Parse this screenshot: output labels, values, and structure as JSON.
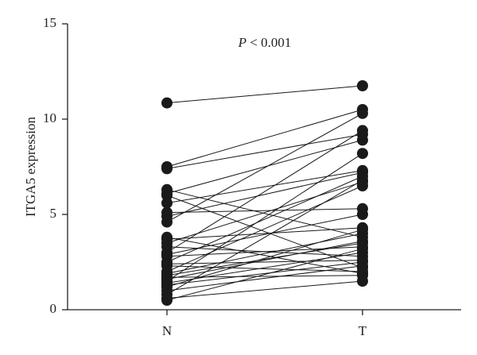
{
  "chart_data": {
    "type": "paired",
    "y_label": "ITGA5 expression",
    "annotation": {
      "italic": "P",
      "rest": " < 0.001"
    },
    "categories": [
      "N",
      "T"
    ],
    "pairs": [
      [
        10.85,
        11.75
      ],
      [
        7.5,
        10.5
      ],
      [
        7.4,
        9.2
      ],
      [
        6.3,
        3.8
      ],
      [
        6.1,
        8.9
      ],
      [
        5.6,
        7.3
      ],
      [
        5.1,
        5.3
      ],
      [
        4.6,
        10.3
      ],
      [
        3.7,
        4.3
      ],
      [
        3.5,
        6.7
      ],
      [
        3.3,
        2.8
      ],
      [
        3.0,
        9.4
      ],
      [
        2.9,
        5.0
      ],
      [
        2.8,
        3.3
      ],
      [
        2.5,
        7.0
      ],
      [
        2.3,
        2.0
      ],
      [
        2.0,
        6.5
      ],
      [
        1.9,
        4.0
      ],
      [
        1.8,
        3.5
      ],
      [
        1.7,
        1.8
      ],
      [
        1.5,
        8.2
      ],
      [
        1.4,
        3.0
      ],
      [
        1.3,
        2.5
      ],
      [
        1.2,
        4.2
      ],
      [
        1.0,
        2.3
      ],
      [
        0.8,
        6.8
      ],
      [
        0.6,
        1.5
      ],
      [
        0.5,
        3.2
      ],
      [
        6.0,
        2.2
      ],
      [
        2.4,
        2.6
      ],
      [
        1.6,
        3.6
      ],
      [
        3.8,
        1.9
      ],
      [
        4.9,
        7.2
      ]
    ],
    "color": "#1a1a1a",
    "ylim": [
      0,
      15
    ],
    "yticks": [
      0,
      5,
      10,
      15
    ]
  }
}
